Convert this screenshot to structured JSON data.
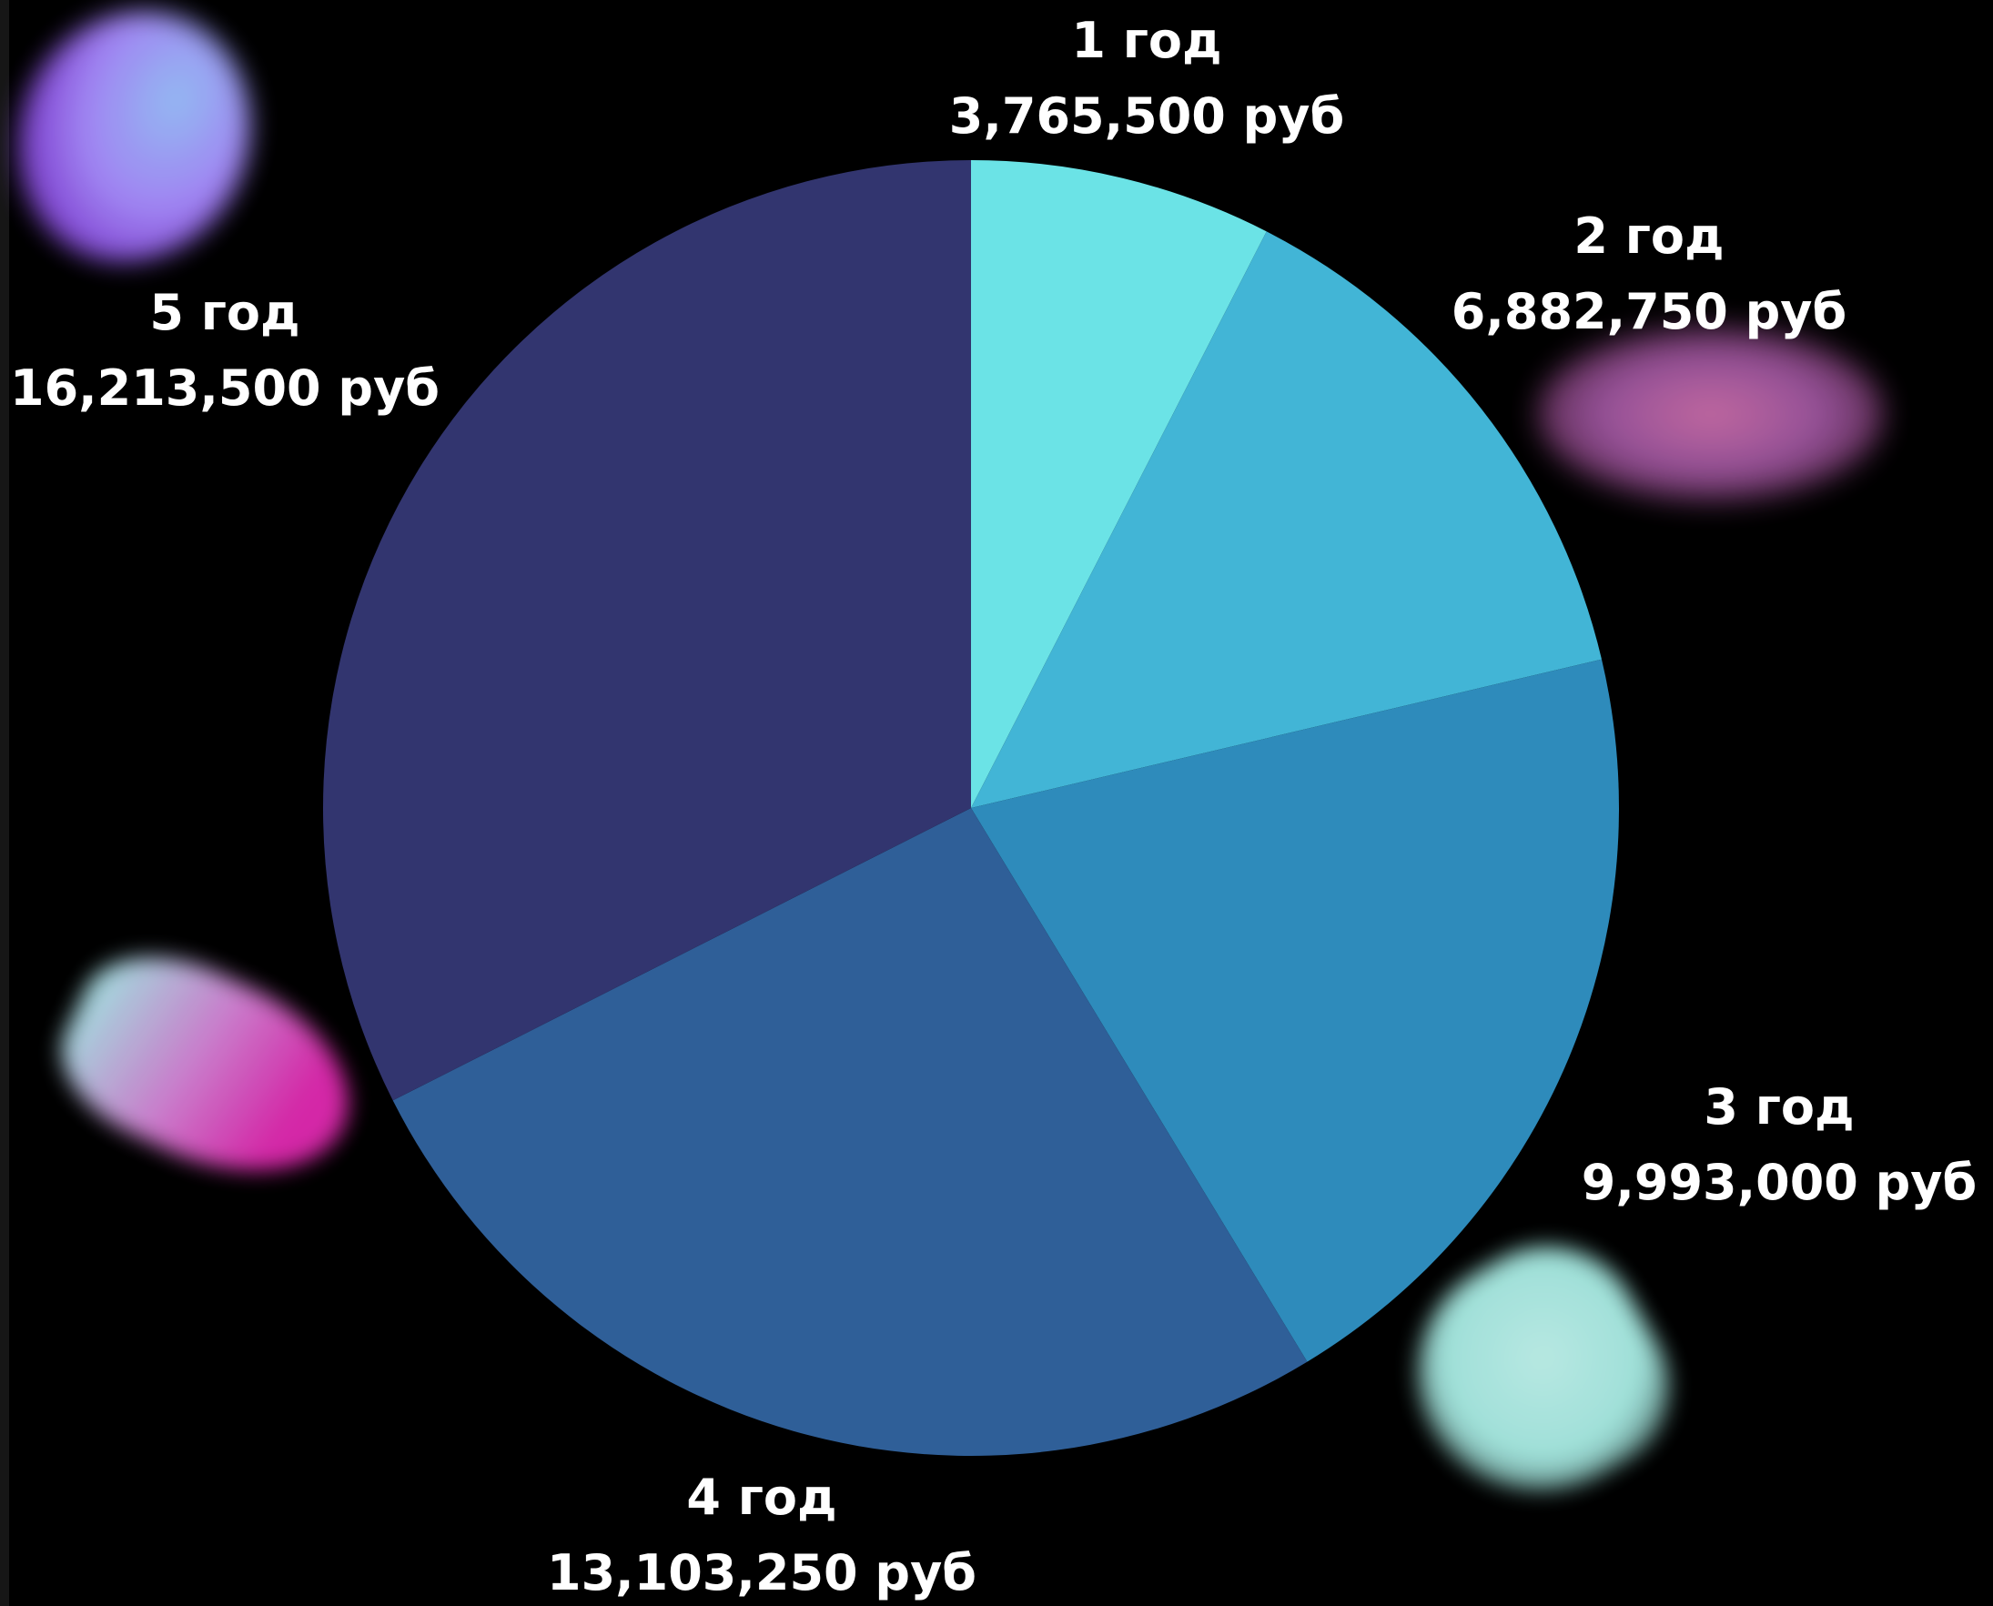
{
  "chart_data": {
    "type": "pie",
    "start": "12 o'clock",
    "direction": "clockwise",
    "categories": [
      "1 год",
      "2 год",
      "3 год",
      "4 год",
      "5 год"
    ],
    "values": [
      3765500,
      6882750,
      9993000,
      13103250,
      16213500
    ],
    "value_labels": [
      "3,765,500 руб",
      "6,882,750 руб",
      "9,993,000 руб",
      "13,103,250 руб",
      "16,213,500 руб"
    ],
    "colors": [
      "#6be3e6",
      "#42b5d6",
      "#2e8bbb",
      "#2f5f98",
      "#32356f"
    ],
    "background": "#000000"
  }
}
